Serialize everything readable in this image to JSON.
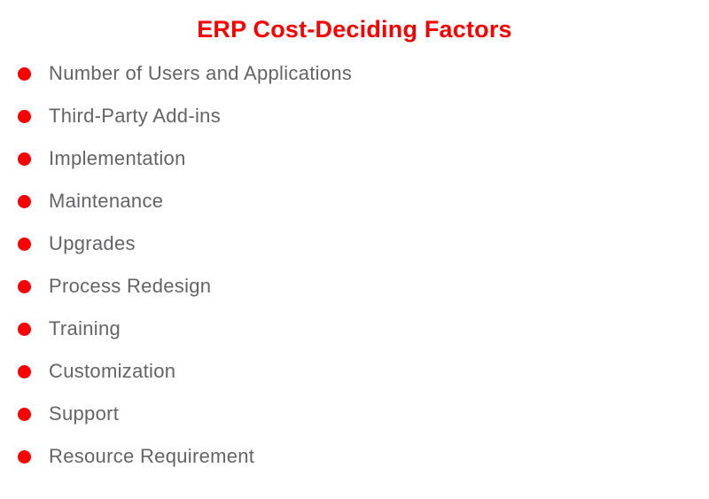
{
  "page": {
    "title": "ERP Cost-Deciding Factors"
  },
  "colors": {
    "accent_red": "#fa0000",
    "text_gray": "#636466",
    "background": "#ffffff"
  },
  "list": {
    "items": [
      {
        "label": "Number of Users and Applications"
      },
      {
        "label": "Third-Party Add-ins"
      },
      {
        "label": "Implementation"
      },
      {
        "label": "Maintenance"
      },
      {
        "label": "Upgrades"
      },
      {
        "label": "Process Redesign"
      },
      {
        "label": "Training"
      },
      {
        "label": "Customization"
      },
      {
        "label": "Support"
      },
      {
        "label": "Resource Requirement"
      }
    ]
  }
}
